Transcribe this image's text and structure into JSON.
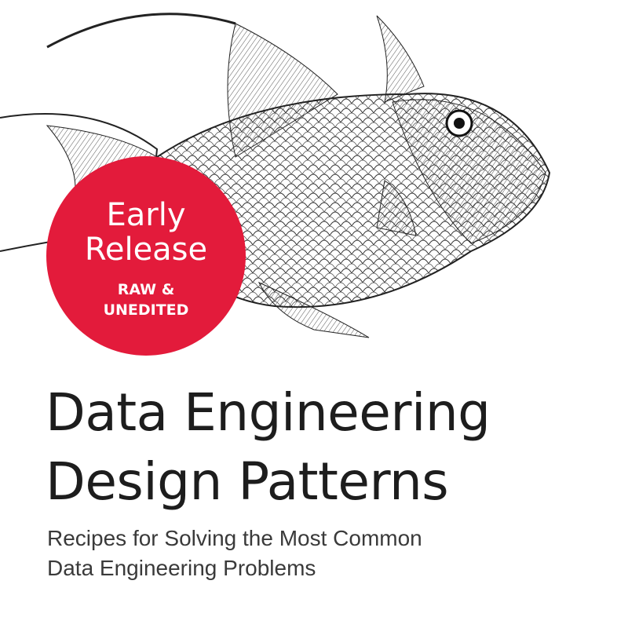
{
  "cover": {
    "illustration": "triggerfish-engraving",
    "badge": {
      "line1": "Early",
      "line2": "Release",
      "line3": "RAW &",
      "line4": "UNEDITED",
      "color": "#e31b3b"
    },
    "title_line1": "Data Engineering",
    "title_line2": "Design Patterns",
    "subtitle_line1": "Recipes for Solving the Most Common",
    "subtitle_line2": "Data Engineering Problems"
  }
}
